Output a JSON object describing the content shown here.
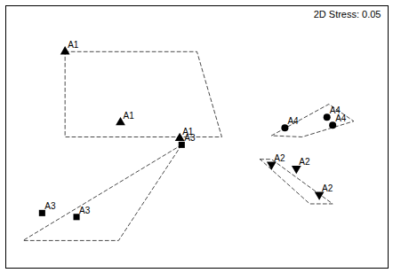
{
  "chart_data": {
    "type": "scatter",
    "annotation": "2D Stress: 0.05",
    "xlim": [
      0,
      1
    ],
    "ylim": [
      0,
      1
    ],
    "xticks": [],
    "yticks": [],
    "tick_labels": false,
    "grid": false,
    "line_style": "dashed",
    "series": [
      {
        "name": "A1",
        "marker": "triangle-up",
        "color": "black",
        "values": [
          [
            0.155,
            0.825
          ],
          [
            0.3,
            0.555
          ],
          [
            0.455,
            0.495
          ]
        ],
        "hull": [
          [
            0.155,
            0.825
          ],
          [
            0.5,
            0.825
          ],
          [
            0.565,
            0.5
          ],
          [
            0.155,
            0.5
          ],
          [
            0.155,
            0.825
          ]
        ]
      },
      {
        "name": "A3",
        "marker": "square",
        "color": "black",
        "values": [
          [
            0.46,
            0.47
          ],
          [
            0.095,
            0.21
          ],
          [
            0.185,
            0.195
          ]
        ],
        "hull": [
          [
            0.46,
            0.47
          ],
          [
            0.045,
            0.105
          ],
          [
            0.295,
            0.105
          ],
          [
            0.46,
            0.47
          ]
        ]
      },
      {
        "name": "A4",
        "marker": "circle",
        "color": "black",
        "values": [
          [
            0.73,
            0.535
          ],
          [
            0.84,
            0.575
          ],
          [
            0.855,
            0.545
          ]
        ],
        "hull": [
          [
            0.695,
            0.505
          ],
          [
            0.845,
            0.625
          ],
          [
            0.91,
            0.56
          ],
          [
            0.775,
            0.5
          ],
          [
            0.695,
            0.505
          ]
        ]
      },
      {
        "name": "A2",
        "marker": "triangle-down",
        "color": "black",
        "values": [
          [
            0.695,
            0.395
          ],
          [
            0.76,
            0.38
          ],
          [
            0.82,
            0.28
          ]
        ],
        "hull": [
          [
            0.665,
            0.415
          ],
          [
            0.695,
            0.415
          ],
          [
            0.855,
            0.245
          ],
          [
            0.795,
            0.245
          ],
          [
            0.665,
            0.415
          ]
        ]
      }
    ]
  }
}
